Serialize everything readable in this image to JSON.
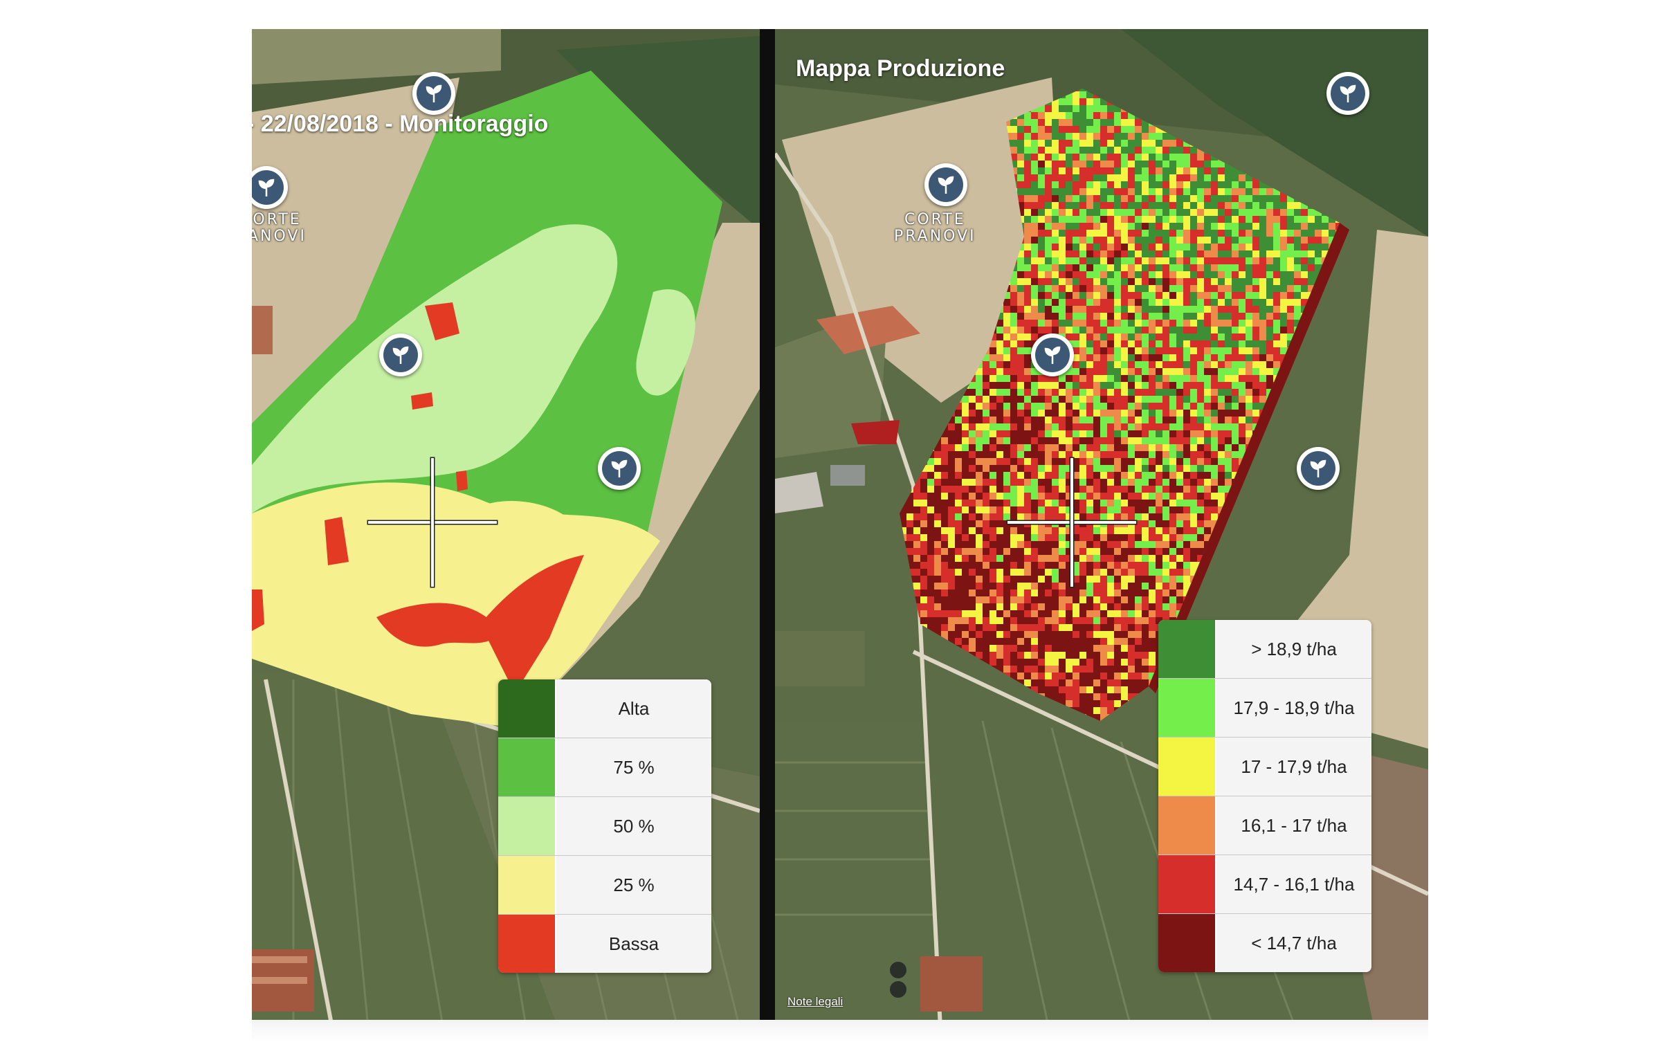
{
  "left_map": {
    "title": "- 22/08/2018 - Monitoraggio",
    "place_label": "ORTE\nANOVI",
    "legend": [
      {
        "label": "Alta",
        "color": "#2e6a1e"
      },
      {
        "label": "75 %",
        "color": "#5cc042"
      },
      {
        "label": "50 %",
        "color": "#c5f0a2"
      },
      {
        "label": "25 %",
        "color": "#f7f08e"
      },
      {
        "label": "Bassa",
        "color": "#e23a23"
      }
    ]
  },
  "right_map": {
    "title": "Mappa Produzione",
    "place_label": "CORTE\nPRANOVI",
    "legal_link": "Note legali",
    "legend": [
      {
        "label": "> 18,9 t/ha",
        "color": "#3e8e35"
      },
      {
        "label": "17,9 - 18,9 t/ha",
        "color": "#74ee4a"
      },
      {
        "label": "17 - 17,9 t/ha",
        "color": "#f4f443"
      },
      {
        "label": "16,1 - 17 t/ha",
        "color": "#ee8a4a"
      },
      {
        "label": "14,7 - 16,1 t/ha",
        "color": "#d62f2b"
      },
      {
        "label": "< 14,7 t/ha",
        "color": "#7c1414"
      }
    ]
  },
  "icons": {
    "pin": "plant-sprout-icon",
    "crosshair": "crosshair-icon"
  }
}
